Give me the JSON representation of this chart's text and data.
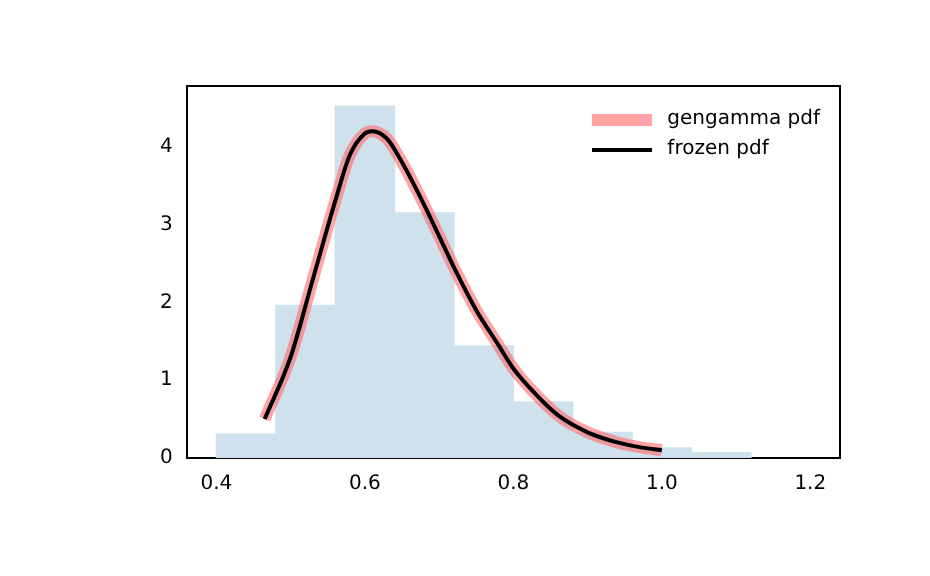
{
  "chart_data": {
    "type": "histogram",
    "xlim": [
      0.36,
      1.24
    ],
    "xticks": [
      {
        "value": 0.4,
        "label": "0.4"
      },
      {
        "value": 0.6,
        "label": "0.6"
      },
      {
        "value": 0.8,
        "label": "0.8"
      },
      {
        "value": 1.0,
        "label": "1.0"
      },
      {
        "value": 1.2,
        "label": "1.2"
      }
    ],
    "ylim": [
      0,
      4.78
    ],
    "yticks": [
      0,
      1,
      2,
      3,
      4
    ],
    "grid": false,
    "legend": "top right",
    "series": [
      {
        "type": "histogram",
        "color": "#d0e1ee",
        "bins": [
          0.4,
          0.48,
          0.56,
          0.64,
          0.72,
          0.8,
          0.88,
          0.96,
          1.04,
          1.12
        ],
        "values": [
          0.31,
          1.96,
          4.52,
          3.15,
          1.44,
          0.72,
          0.33,
          0.13,
          0.07
        ]
      },
      {
        "type": "line",
        "name": "gengamma pdf",
        "color": "#ff6767",
        "x": [
          0.465,
          0.5,
          0.53,
          0.56,
          0.58,
          0.6,
          0.61,
          0.63,
          0.65,
          0.68,
          0.7,
          0.72,
          0.75,
          0.78,
          0.8,
          0.83,
          0.86,
          0.9,
          0.94,
          0.97,
          1.0
        ],
        "values": [
          0.5,
          1.3,
          2.3,
          3.3,
          3.9,
          4.17,
          4.2,
          4.1,
          3.8,
          3.25,
          2.85,
          2.45,
          1.9,
          1.45,
          1.15,
          0.82,
          0.55,
          0.33,
          0.2,
          0.14,
          0.1
        ]
      },
      {
        "type": "line",
        "name": "frozen pdf",
        "color": "#000000",
        "x": [
          0.465,
          0.5,
          0.53,
          0.56,
          0.58,
          0.6,
          0.61,
          0.63,
          0.65,
          0.68,
          0.7,
          0.72,
          0.75,
          0.78,
          0.8,
          0.83,
          0.86,
          0.9,
          0.94,
          0.97,
          1.0
        ],
        "values": [
          0.5,
          1.3,
          2.3,
          3.3,
          3.9,
          4.17,
          4.2,
          4.1,
          3.8,
          3.25,
          2.85,
          2.45,
          1.9,
          1.45,
          1.15,
          0.82,
          0.55,
          0.33,
          0.2,
          0.14,
          0.1
        ]
      }
    ]
  }
}
